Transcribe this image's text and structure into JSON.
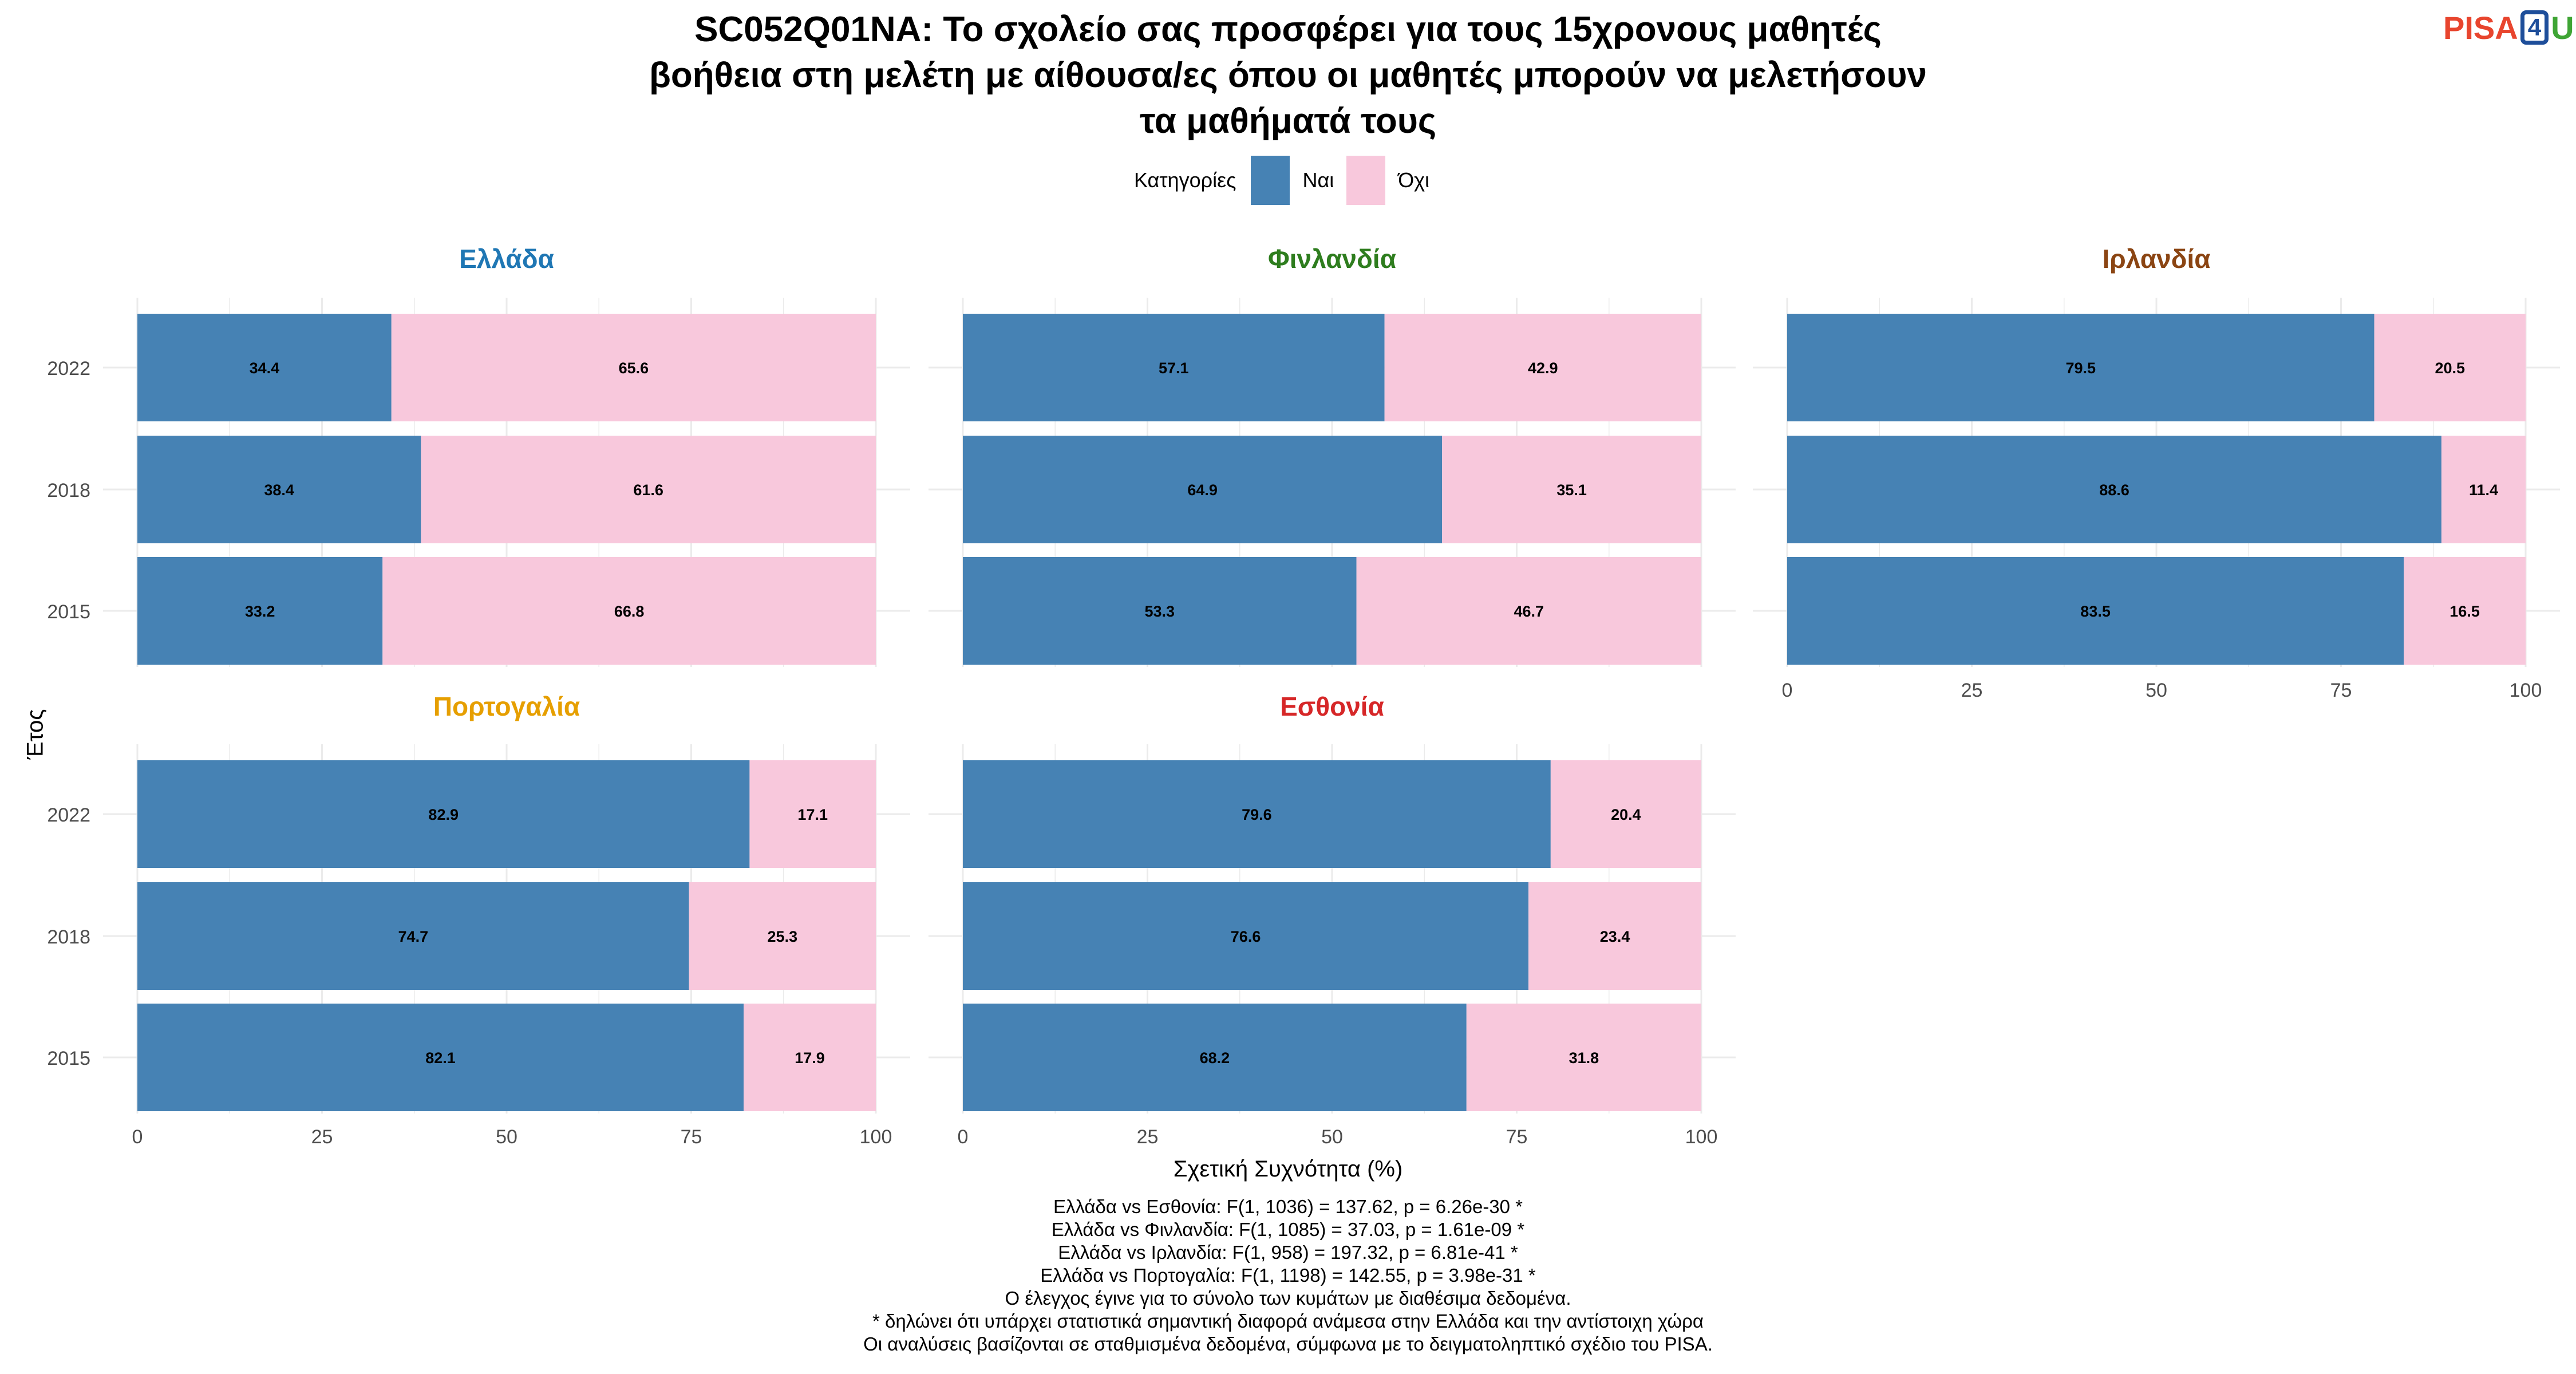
{
  "title_lines": [
    "SC052Q01NA: Το σχολείο σας προσφέρει για τους 15χρονους μαθητές",
    "βοήθεια στη μελέτη με αίθουσα/ες όπου οι μαθητές μπορούν να μελετήσουν",
    "τα μαθήματά τους"
  ],
  "logo": {
    "part1": "PISA",
    "part2": "4",
    "part3": "U"
  },
  "legend": {
    "title": "Κατηγορίες"
  },
  "colors": {
    "yes": "#4682b4",
    "no": "#f8c8dc",
    "grid": "#ebebeb",
    "tick_text": "#4d4d4d"
  },
  "chart_data": {
    "type": "bar",
    "orientation": "horizontal",
    "stacked": true,
    "xlabel": "Σχετική Συχνότητα (%)",
    "ylabel": "Έτος",
    "xlim": [
      0,
      100
    ],
    "x_ticks": [
      "0",
      "25",
      "50",
      "75",
      "100"
    ],
    "categories": [
      "2022",
      "2018",
      "2015"
    ],
    "series": [
      {
        "name": "Ναι",
        "color": "#4682b4"
      },
      {
        "name": "Όχι",
        "color": "#f8c8dc"
      }
    ],
    "panels": [
      {
        "name": "Ελλάδα",
        "title_color": "#1f77b4",
        "yes": [
          34.4,
          38.4,
          33.2
        ],
        "no": [
          65.6,
          61.6,
          66.8
        ]
      },
      {
        "name": "Φινλανδία",
        "title_color": "#2e7d1e",
        "yes": [
          57.1,
          64.9,
          53.3
        ],
        "no": [
          42.9,
          35.1,
          46.7
        ]
      },
      {
        "name": "Ιρλανδία",
        "title_color": "#8b4513",
        "yes": [
          79.5,
          88.6,
          83.5
        ],
        "no": [
          20.5,
          11.4,
          16.5
        ]
      },
      {
        "name": "Πορτογαλία",
        "title_color": "#e69f00",
        "yes": [
          82.9,
          74.7,
          82.1
        ],
        "no": [
          17.1,
          25.3,
          17.9
        ]
      },
      {
        "name": "Εσθονία",
        "title_color": "#d62728",
        "yes": [
          79.6,
          76.6,
          68.2
        ],
        "no": [
          20.4,
          23.4,
          31.8
        ]
      }
    ]
  },
  "notes": [
    "Ελλάδα vs Εσθονία: F(1, 1036) = 137.62, p = 6.26e-30 *",
    "Ελλάδα vs Φινλανδία: F(1, 1085) = 37.03, p = 1.61e-09 *",
    "Ελλάδα vs Ιρλανδία: F(1, 958) = 197.32, p = 6.81e-41 *",
    "Ελλάδα vs Πορτογαλία: F(1, 1198) = 142.55, p = 3.98e-31 *",
    "Ο έλεγχος έγινε για το σύνολο των κυμάτων με διαθέσιμα δεδομένα.",
    "* δηλώνει ότι υπάρχει στατιστικά σημαντική διαφορά ανάμεσα στην Ελλάδα και την αντίστοιχη χώρα",
    "Οι αναλύσεις βασίζονται σε σταθμισμένα δεδομένα, σύμφωνα με το δειγματοληπτικό σχέδιο του PISA."
  ]
}
